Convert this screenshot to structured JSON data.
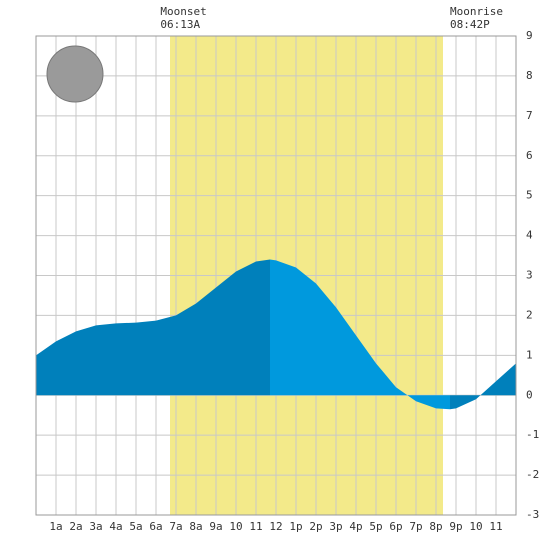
{
  "chart_data": {
    "type": "area",
    "xlim": [
      0,
      24
    ],
    "ylim": [
      -3,
      9
    ],
    "yticks": [
      -3,
      -2,
      -1,
      0,
      1,
      2,
      3,
      4,
      5,
      6,
      7,
      8,
      9
    ],
    "xticks": [
      {
        "value": 1,
        "label": "1a"
      },
      {
        "value": 2,
        "label": "2a"
      },
      {
        "value": 3,
        "label": "3a"
      },
      {
        "value": 4,
        "label": "4a"
      },
      {
        "value": 5,
        "label": "5a"
      },
      {
        "value": 6,
        "label": "6a"
      },
      {
        "value": 7,
        "label": "7a"
      },
      {
        "value": 8,
        "label": "8a"
      },
      {
        "value": 9,
        "label": "9a"
      },
      10,
      11,
      12,
      {
        "value": 13,
        "label": "1p"
      },
      {
        "value": 14,
        "label": "2p"
      },
      {
        "value": 15,
        "label": "3p"
      },
      {
        "value": 16,
        "label": "4p"
      },
      {
        "value": 17,
        "label": "5p"
      },
      {
        "value": 18,
        "label": "6p"
      },
      {
        "value": 19,
        "label": "7p"
      },
      {
        "value": 20,
        "label": "8p"
      },
      {
        "value": 21,
        "label": "9p"
      },
      {
        "value": 22,
        "label": "10"
      },
      {
        "value": 23,
        "label": "11"
      }
    ],
    "grid": true,
    "daylight": {
      "range": [
        6.7,
        20.35
      ],
      "color": "#f3ea8a"
    },
    "annotations": [
      {
        "label": "Moonset",
        "time": "06:13A",
        "x": 6.22
      },
      {
        "label": "Moonrise",
        "time": "08:42P",
        "x": 20.7
      }
    ],
    "series": [
      {
        "color": "#0080bb",
        "x": [
          0,
          1,
          2,
          3,
          4,
          5,
          6,
          7,
          8,
          9,
          10,
          11,
          11.7
        ],
        "values": [
          1.0,
          1.35,
          1.6,
          1.75,
          1.8,
          1.82,
          1.87,
          2.0,
          2.3,
          2.7,
          3.1,
          3.35,
          3.4
        ]
      },
      {
        "color": "#0099dd",
        "x": [
          11.7,
          12,
          13,
          14,
          15,
          16,
          17,
          18,
          19,
          20,
          20.7
        ],
        "values": [
          3.4,
          3.38,
          3.2,
          2.8,
          2.2,
          1.5,
          0.8,
          0.2,
          -0.15,
          -0.33,
          -0.35
        ]
      },
      {
        "color": "#0080bb",
        "x": [
          20.7,
          21,
          22,
          23,
          24
        ],
        "values": [
          -0.35,
          -0.33,
          -0.1,
          0.35,
          0.8
        ]
      }
    ]
  }
}
